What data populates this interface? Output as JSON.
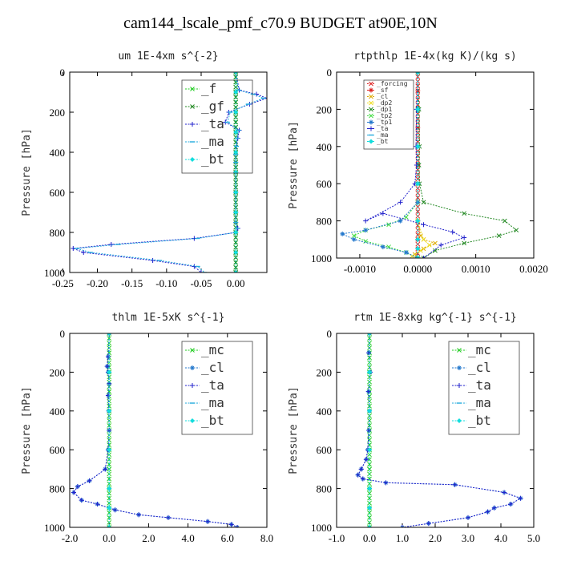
{
  "title": "cam144_lscale_pmf_c70.9  BUDGET at90E,10N",
  "chart_data": [
    {
      "type": "line",
      "title": "um   1E-4xm s^{-2}",
      "ylabel": "Pressure [hPa]",
      "xlabel": "",
      "xlim": [
        -0.24,
        0.045
      ],
      "ylim": [
        1000,
        0
      ],
      "xticks": [
        -0.25,
        -0.2,
        -0.15,
        -0.1,
        -0.05,
        0.0
      ],
      "xtick_labels": [
        "-0.25",
        "-0.20",
        "-0.15",
        "-0.10",
        "-0.05",
        "0.00"
      ],
      "yticks": [
        0,
        200,
        400,
        600,
        800,
        1000
      ],
      "ytick_labels": [
        "0",
        "200",
        "400",
        "600",
        "800",
        "1000"
      ],
      "legend_position": "top-right",
      "legend_size": "large",
      "series": [
        {
          "name": "_f",
          "color": "#22cc22",
          "marker": "x",
          "x": [
            0,
            0,
            0,
            0,
            0,
            0,
            0,
            0,
            0,
            0,
            0
          ],
          "y": [
            0,
            100,
            200,
            300,
            400,
            500,
            600,
            700,
            800,
            900,
            1000
          ]
        },
        {
          "name": "_gf",
          "color": "#228822",
          "marker": "x",
          "x": [
            0,
            0,
            0,
            0,
            0,
            0,
            0,
            0,
            0,
            0,
            0
          ],
          "y": [
            0,
            100,
            200,
            300,
            400,
            500,
            600,
            700,
            800,
            900,
            1000
          ]
        },
        {
          "name": "_ta",
          "color": "#2222cc",
          "marker": "+",
          "x": [
            0,
            0.005,
            0.03,
            0.045,
            0.02,
            -0.01,
            -0.015,
            0.005,
            0.003,
            0.001,
            0,
            0,
            0,
            0,
            0,
            0,
            0.003,
            0,
            -0.06,
            -0.18,
            -0.235,
            -0.22,
            -0.12,
            -0.06,
            -0.05
          ],
          "y": [
            0,
            90,
            110,
            130,
            160,
            200,
            250,
            290,
            330,
            370,
            410,
            450,
            500,
            600,
            700,
            750,
            780,
            800,
            830,
            860,
            880,
            900,
            940,
            970,
            1000
          ]
        },
        {
          "name": "_ma",
          "color": "#22aadd",
          "marker": "dash",
          "x": [
            0,
            0.004,
            0.025,
            0.04,
            0.018,
            -0.008,
            -0.012,
            0.004,
            0.002,
            0.001,
            0,
            0,
            0,
            0,
            0,
            0,
            0.002,
            0,
            -0.055,
            -0.17,
            -0.23,
            -0.21,
            -0.11,
            -0.055,
            -0.045
          ],
          "y": [
            0,
            90,
            110,
            130,
            160,
            200,
            250,
            290,
            330,
            370,
            410,
            450,
            500,
            600,
            700,
            750,
            780,
            800,
            830,
            860,
            880,
            900,
            940,
            970,
            1000
          ]
        },
        {
          "name": "_bt",
          "color": "#11dddd",
          "marker": "diamond",
          "x": [
            0,
            0,
            0,
            0,
            0,
            0,
            0,
            0,
            0,
            0,
            0
          ],
          "y": [
            0,
            100,
            200,
            300,
            400,
            500,
            600,
            700,
            800,
            900,
            1000
          ]
        }
      ]
    },
    {
      "type": "line",
      "title": "rtpthlp   1E-4x(kg K)/(kg s)",
      "ylabel": "Pressure [hPa]",
      "xlabel": "",
      "xlim": [
        -0.0014,
        0.002
      ],
      "ylim": [
        1000,
        0
      ],
      "xticks": [
        -0.001,
        0,
        0.001,
        0.002
      ],
      "xtick_labels": [
        "-0.0010",
        "0.0000",
        "0.0010",
        "0.0020"
      ],
      "yticks": [
        0,
        200,
        400,
        600,
        800,
        1000
      ],
      "ytick_labels": [
        "0",
        "200",
        "400",
        "600",
        "800",
        "1000"
      ],
      "legend_position": "top-left",
      "legend_size": "small",
      "series": [
        {
          "name": "_forcing",
          "color": "#dd2222",
          "marker": "x",
          "x": [
            0,
            0,
            0,
            0,
            0,
            0,
            0,
            0,
            0,
            0,
            0
          ],
          "y": [
            0,
            100,
            200,
            300,
            400,
            500,
            600,
            700,
            800,
            900,
            1000
          ]
        },
        {
          "name": "_sf",
          "color": "#dd2222",
          "marker": "star",
          "x": [
            0,
            0,
            0,
            0,
            0,
            0,
            0,
            0,
            0,
            0,
            0
          ],
          "y": [
            0,
            100,
            200,
            300,
            400,
            500,
            600,
            700,
            800,
            900,
            1000
          ]
        },
        {
          "name": "_cl",
          "color": "#ddaa00",
          "marker": "x",
          "x": [
            0,
            0,
            0,
            0,
            0,
            0,
            5e-05,
            0.0001,
            0.0003,
            0.0001,
            -5e-05,
            0
          ],
          "y": [
            0,
            200,
            400,
            600,
            700,
            800,
            880,
            900,
            920,
            950,
            980,
            1000
          ]
        },
        {
          "name": "_dp2",
          "color": "#eedd22",
          "marker": "x",
          "x": [
            0,
            0,
            0,
            0,
            0,
            0,
            0.0001,
            0.0002,
            5e-05,
            -0.0001,
            0
          ],
          "y": [
            0,
            200,
            400,
            600,
            700,
            800,
            900,
            930,
            960,
            990,
            1000
          ]
        },
        {
          "name": "_dp1",
          "color": "#228822",
          "marker": "x",
          "x": [
            0,
            2e-05,
            3e-05,
            2e-05,
            3e-05,
            0.0001,
            0.0008,
            0.0015,
            0.0017,
            0.0014,
            0.0008,
            0.0003,
            0.0001
          ],
          "y": [
            0,
            200,
            400,
            500,
            600,
            700,
            760,
            800,
            850,
            880,
            920,
            960,
            1000
          ]
        },
        {
          "name": "_tp2",
          "color": "#44dd44",
          "marker": "x",
          "x": [
            0,
            0,
            0,
            0,
            0,
            -0.0002,
            -0.0005,
            -0.0009,
            -0.0011,
            -0.0009,
            -0.0005,
            -0.0002,
            0
          ],
          "y": [
            0,
            200,
            400,
            600,
            700,
            780,
            820,
            850,
            880,
            910,
            940,
            970,
            1000
          ]
        },
        {
          "name": "_tp1",
          "color": "#2277cc",
          "marker": "star",
          "x": [
            0,
            0,
            0,
            0,
            0,
            -0.0003,
            -0.0009,
            -0.0013,
            -0.0011,
            -0.0006,
            -0.0002,
            0
          ],
          "y": [
            0,
            200,
            400,
            600,
            700,
            800,
            850,
            870,
            900,
            940,
            970,
            1000
          ]
        },
        {
          "name": "_ta",
          "color": "#2222cc",
          "marker": "+",
          "x": [
            0,
            -2e-05,
            -3e-05,
            -2e-05,
            -5e-05,
            -0.0003,
            -0.0009,
            -0.0006,
            0.0001,
            0.0006,
            0.0008,
            0.0004,
            0.0001
          ],
          "y": [
            0,
            200,
            400,
            500,
            600,
            700,
            800,
            760,
            820,
            860,
            890,
            930,
            1000
          ]
        },
        {
          "name": "_ma",
          "color": "#22aadd",
          "marker": "dash",
          "x": [
            0,
            0,
            0,
            0,
            0,
            0,
            0,
            0
          ],
          "y": [
            0,
            200,
            400,
            600,
            800,
            900,
            950,
            1000
          ]
        },
        {
          "name": "_bt",
          "color": "#11dddd",
          "marker": "diamond",
          "x": [
            0,
            0,
            0,
            0,
            0,
            0,
            0,
            0
          ],
          "y": [
            0,
            200,
            400,
            600,
            800,
            900,
            950,
            1000
          ]
        }
      ]
    },
    {
      "type": "line",
      "title": "thlm   1E-5xK s^{-1}",
      "ylabel": "Pressure [hPa]",
      "xlabel": "",
      "xlim": [
        -2.0,
        8.0
      ],
      "ylim": [
        1000,
        0
      ],
      "xticks": [
        -2,
        0,
        2,
        4,
        6,
        8
      ],
      "xtick_labels": [
        "-2.0",
        "0.0",
        "2.0",
        "4.0",
        "6.0",
        "8.0"
      ],
      "yticks": [
        0,
        200,
        400,
        600,
        800,
        1000
      ],
      "ytick_labels": [
        "0",
        "200",
        "400",
        "600",
        "800",
        "1000"
      ],
      "legend_position": "top-right",
      "legend_size": "large",
      "series": [
        {
          "name": "_mc",
          "color": "#22cc22",
          "marker": "x",
          "x": [
            0,
            0,
            0,
            0,
            0,
            0,
            0,
            0,
            0,
            0,
            0
          ],
          "y": [
            0,
            100,
            200,
            300,
            400,
            500,
            600,
            700,
            800,
            900,
            1000
          ]
        },
        {
          "name": "_cl",
          "color": "#2277cc",
          "marker": "star",
          "x": [
            0,
            -0.05,
            -0.1,
            -0.05,
            0,
            -0.05,
            -0.02,
            0,
            -0.05,
            -0.2,
            -1.0,
            -1.6,
            -1.8,
            -1.4,
            -0.6,
            0.3,
            1.5,
            3.0,
            5.0,
            6.2,
            6.5
          ],
          "y": [
            0,
            120,
            170,
            200,
            260,
            320,
            400,
            500,
            600,
            700,
            760,
            790,
            820,
            860,
            880,
            910,
            935,
            950,
            970,
            985,
            1000
          ]
        },
        {
          "name": "_ta",
          "color": "#2222cc",
          "marker": "+",
          "x": [
            0,
            -0.05,
            -0.1,
            -0.05,
            0,
            -0.05,
            -0.02,
            0,
            -0.05,
            -0.2,
            -1.0,
            -1.6,
            -1.8,
            -1.4,
            -0.6,
            0.3,
            1.5,
            3.0,
            5.0,
            6.2,
            6.5
          ],
          "y": [
            0,
            120,
            170,
            200,
            260,
            320,
            400,
            500,
            600,
            700,
            760,
            790,
            820,
            860,
            880,
            910,
            935,
            950,
            970,
            985,
            1000
          ]
        },
        {
          "name": "_ma",
          "color": "#22aadd",
          "marker": "dash",
          "x": [
            0,
            0,
            0,
            0,
            0,
            0,
            0
          ],
          "y": [
            0,
            200,
            400,
            600,
            800,
            900,
            1000
          ]
        },
        {
          "name": "_bt",
          "color": "#11dddd",
          "marker": "diamond",
          "x": [
            0,
            0,
            0,
            0,
            0,
            0,
            0
          ],
          "y": [
            0,
            200,
            400,
            600,
            800,
            900,
            1000
          ]
        }
      ]
    },
    {
      "type": "line",
      "title": "rtm   1E-8xkg kg^{-1} s^{-1}",
      "ylabel": "Pressure [hPa]",
      "xlabel": "",
      "xlim": [
        -1.0,
        5.0
      ],
      "ylim": [
        1000,
        0
      ],
      "xticks": [
        -1,
        0,
        1,
        2,
        3,
        4,
        5
      ],
      "xtick_labels": [
        "-1.0",
        "0.0",
        "1.0",
        "2.0",
        "3.0",
        "4.0",
        "5.0"
      ],
      "yticks": [
        0,
        200,
        400,
        600,
        800,
        1000
      ],
      "ytick_labels": [
        "0",
        "200",
        "400",
        "600",
        "800",
        "1000"
      ],
      "legend_position": "top-right",
      "legend_size": "large",
      "series": [
        {
          "name": "_mc",
          "color": "#22cc22",
          "marker": "x",
          "x": [
            0,
            0,
            0,
            0,
            0,
            0,
            0,
            0,
            0,
            0,
            0
          ],
          "y": [
            0,
            100,
            200,
            300,
            400,
            500,
            600,
            700,
            800,
            900,
            1000
          ]
        },
        {
          "name": "_cl",
          "color": "#2277cc",
          "marker": "star",
          "x": [
            0,
            -0.02,
            0.02,
            -0.03,
            0,
            -0.02,
            -0.05,
            -0.1,
            -0.25,
            -0.35,
            -0.2,
            0.5,
            2.6,
            4.1,
            4.6,
            4.3,
            3.8,
            3.6,
            3.0,
            1.8,
            1.0
          ],
          "y": [
            0,
            100,
            200,
            300,
            400,
            500,
            600,
            650,
            700,
            730,
            750,
            770,
            780,
            820,
            850,
            880,
            900,
            920,
            950,
            980,
            1000
          ]
        },
        {
          "name": "_ta",
          "color": "#2222cc",
          "marker": "+",
          "x": [
            0,
            -0.02,
            0.02,
            -0.03,
            0,
            -0.02,
            -0.05,
            -0.1,
            -0.25,
            -0.35,
            -0.2,
            0.5,
            2.6,
            4.1,
            4.6,
            4.3,
            3.8,
            3.6,
            3.0,
            1.8,
            1.0
          ],
          "y": [
            0,
            100,
            200,
            300,
            400,
            500,
            600,
            650,
            700,
            730,
            750,
            770,
            780,
            820,
            850,
            880,
            900,
            920,
            950,
            980,
            1000
          ]
        },
        {
          "name": "_ma",
          "color": "#22aadd",
          "marker": "dash",
          "x": [
            0,
            0,
            0,
            0,
            0,
            0,
            0
          ],
          "y": [
            0,
            200,
            400,
            600,
            800,
            900,
            1000
          ]
        },
        {
          "name": "_bt",
          "color": "#11dddd",
          "marker": "diamond",
          "x": [
            0,
            0,
            0,
            0,
            0,
            0,
            0
          ],
          "y": [
            0,
            200,
            400,
            600,
            800,
            900,
            1000
          ]
        }
      ]
    }
  ]
}
